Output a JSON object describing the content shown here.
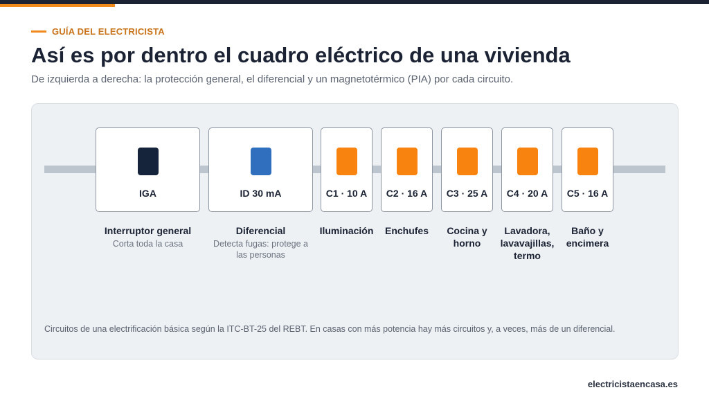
{
  "kicker": "GUÍA DEL ELECTRICISTA",
  "title": "Así es por dentro el cuadro eléctrico de una vivienda",
  "subtitle": "De izquierda a derecha: la protección general, el diferencial y un magnetotérmico (PIA) por cada circuito.",
  "colors": {
    "accent": "#f08a1c",
    "iga_lever": "#15243a",
    "id_lever": "#2f6fbd",
    "pia_lever": "#f8830f"
  },
  "breakers": [
    {
      "rating": "IGA",
      "lever": "iga",
      "name": "Interruptor general",
      "desc": "Corta toda la casa"
    },
    {
      "rating": "ID 30 mA",
      "lever": "id",
      "name": "Diferencial",
      "desc": "Detecta fugas: protege a las personas"
    },
    {
      "rating": "C1 · 10 A",
      "lever": "pia",
      "name": "Iluminación",
      "desc": ""
    },
    {
      "rating": "C2 · 16 A",
      "lever": "pia",
      "name": "Enchufes",
      "desc": ""
    },
    {
      "rating": "C3 · 25 A",
      "lever": "pia",
      "name": "Cocina y horno",
      "desc": ""
    },
    {
      "rating": "C4 · 20 A",
      "lever": "pia",
      "name": "Lavadora, lavavajillas, termo",
      "desc": ""
    },
    {
      "rating": "C5 · 16 A",
      "lever": "pia",
      "name": "Baño y encimera",
      "desc": ""
    }
  ],
  "footnote": "Circuitos de una electrificación básica según la ITC-BT-25 del REBT. En casas con más potencia hay más circuitos y, a veces, más de un diferencial.",
  "site": "electricistaencasa.es"
}
